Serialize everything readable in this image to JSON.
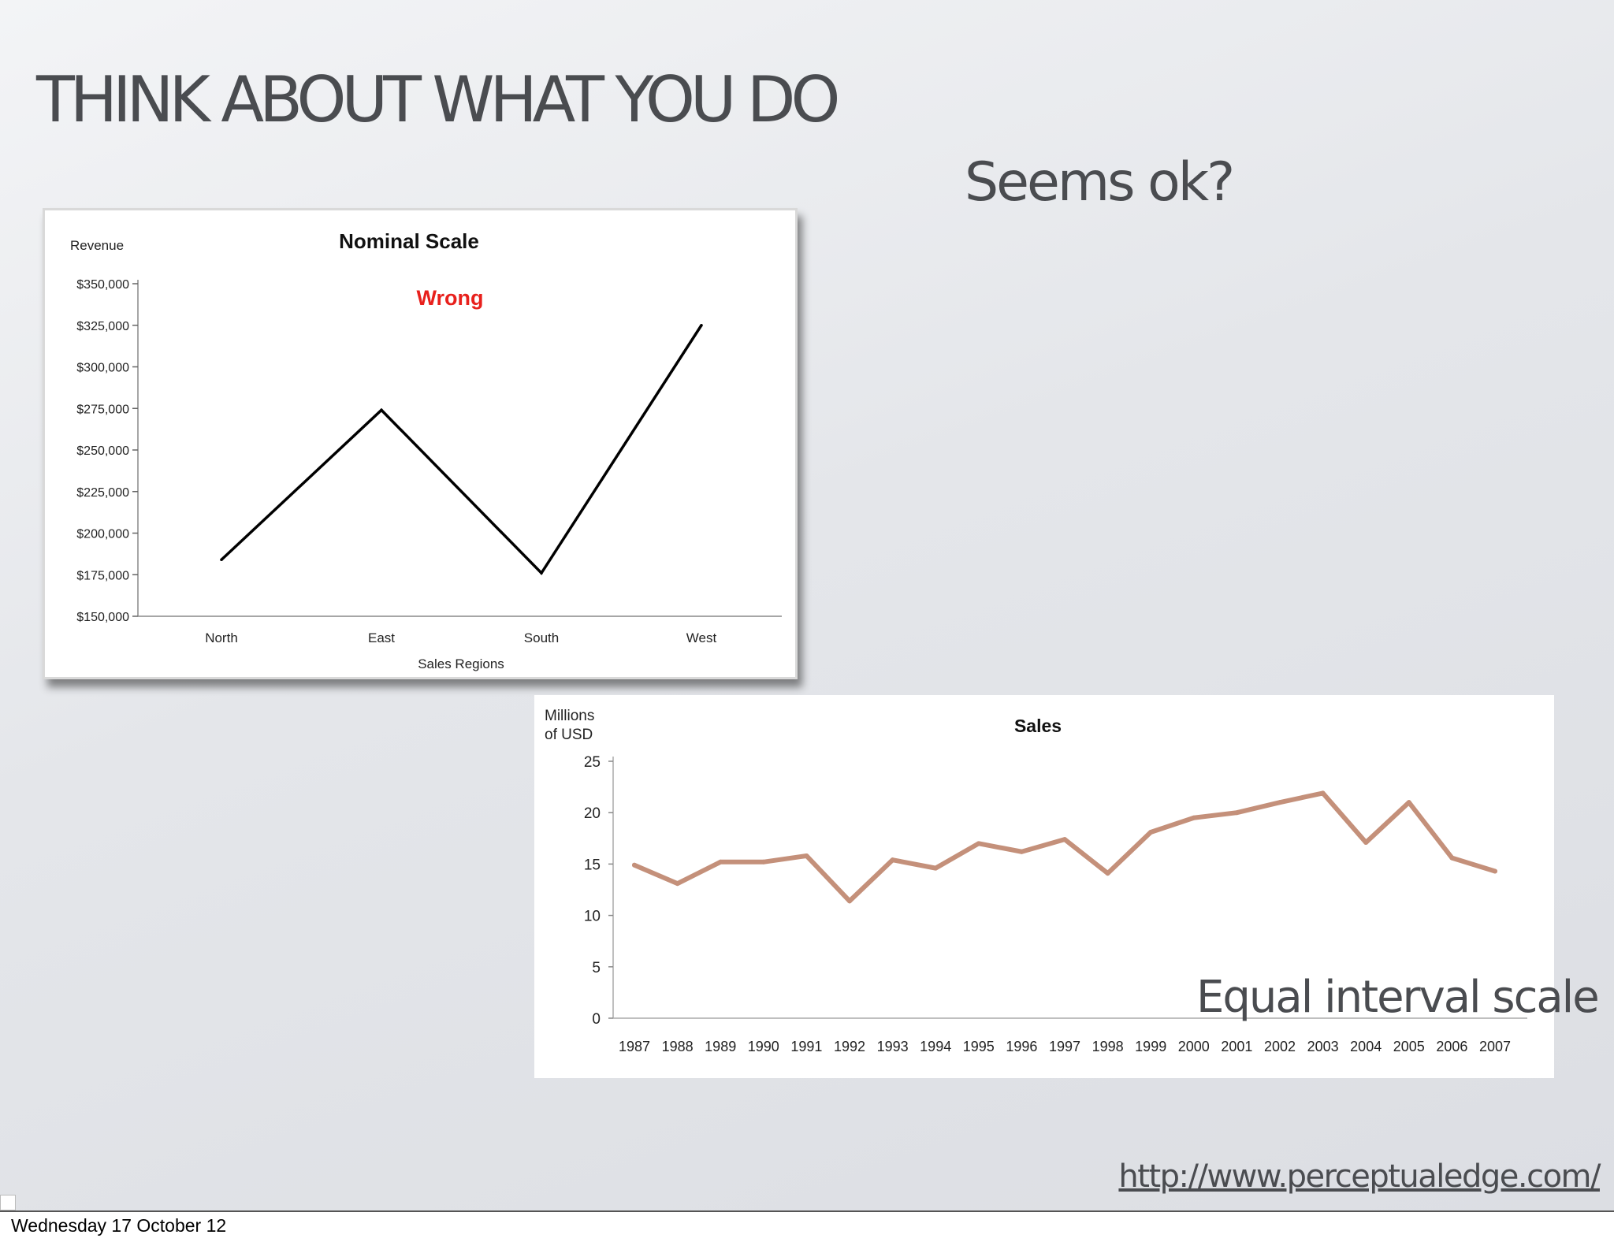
{
  "slide": {
    "title": "THINK ABOUT WHAT YOU DO",
    "subtitle": "Seems ok?",
    "caption": "Equal interval scale",
    "source_link": "http://www.perceptualedge.com/",
    "footer_date": "Wednesday 17 October 12"
  },
  "chart_data": [
    {
      "type": "line",
      "title": "Nominal Scale",
      "annotation": "Wrong",
      "annotation_color": "#e8201c",
      "ylabel": "Revenue",
      "xlabel": "Sales Regions",
      "categories": [
        "North",
        "East",
        "South",
        "West"
      ],
      "values": [
        184000,
        274000,
        176000,
        325000
      ],
      "ylim": [
        150000,
        350000
      ],
      "yticks": [
        150000,
        175000,
        200000,
        225000,
        250000,
        275000,
        300000,
        325000,
        350000
      ],
      "ytick_labels": [
        "$150,000",
        "$175,000",
        "$200,000",
        "$225,000",
        "$250,000",
        "$275,000",
        "$300,000",
        "$325,000",
        "$350,000"
      ],
      "line_color": "#000000",
      "grid": false
    },
    {
      "type": "line",
      "title": "Sales",
      "ylabel_lines": [
        "Millions",
        "of USD"
      ],
      "categories": [
        "1987",
        "1988",
        "1989",
        "1990",
        "1991",
        "1992",
        "1993",
        "1994",
        "1995",
        "1996",
        "1997",
        "1998",
        "1999",
        "2000",
        "2001",
        "2002",
        "2003",
        "2004",
        "2005",
        "2006",
        "2007"
      ],
      "values": [
        14.9,
        13.1,
        15.2,
        15.2,
        15.8,
        11.4,
        15.4,
        14.6,
        17.0,
        16.2,
        17.4,
        14.1,
        18.1,
        19.5,
        20.0,
        21.0,
        21.9,
        17.1,
        21.0,
        15.6,
        14.3
      ],
      "ylim": [
        0,
        25
      ],
      "yticks": [
        0,
        5,
        10,
        15,
        20,
        25
      ],
      "ytick_labels": [
        "0",
        "5",
        "10",
        "15",
        "20",
        "25"
      ],
      "line_color": "#c4907a",
      "grid": false
    }
  ]
}
